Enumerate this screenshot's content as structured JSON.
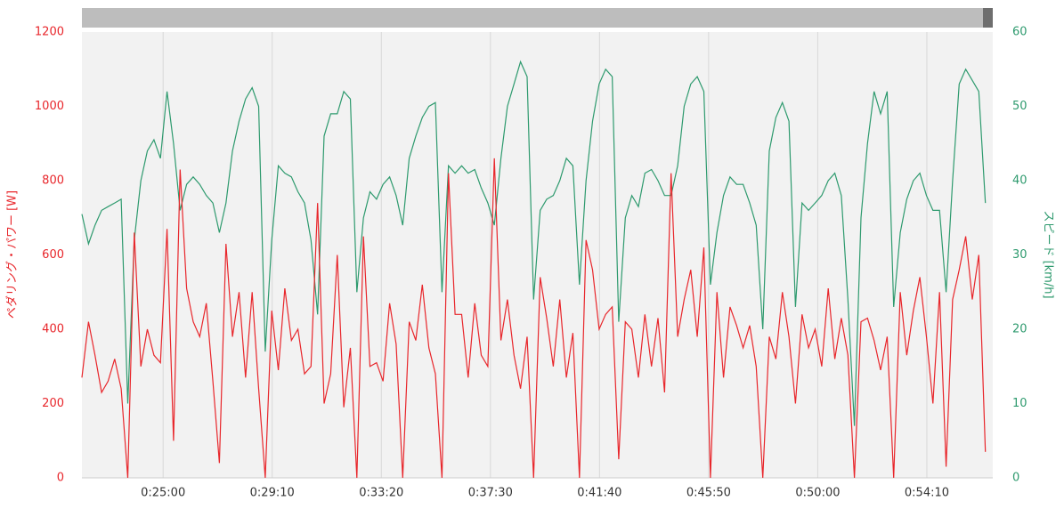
{
  "chart_data": {
    "type": "line",
    "y_label": "ペダリング・パワー [W]",
    "y2_label": "スピード [km/h]",
    "x": [
      1314,
      1329,
      1344,
      1359,
      1374,
      1389,
      1404,
      1419,
      1434,
      1449,
      1464,
      1479,
      1494,
      1509,
      1524,
      1539,
      1554,
      1569,
      1584,
      1599,
      1614,
      1629,
      1644,
      1659,
      1674,
      1689,
      1704,
      1719,
      1734,
      1749,
      1764,
      1779,
      1794,
      1809,
      1824,
      1839,
      1854,
      1869,
      1884,
      1899,
      1914,
      1929,
      1944,
      1959,
      1974,
      1989,
      2004,
      2019,
      2034,
      2049,
      2064,
      2079,
      2094,
      2109,
      2124,
      2139,
      2154,
      2169,
      2184,
      2199,
      2214,
      2229,
      2244,
      2259,
      2274,
      2289,
      2304,
      2319,
      2334,
      2349,
      2364,
      2379,
      2394,
      2409,
      2424,
      2439,
      2454,
      2469,
      2484,
      2499,
      2514,
      2529,
      2544,
      2559,
      2574,
      2589,
      2604,
      2619,
      2634,
      2649,
      2664,
      2679,
      2694,
      2709,
      2724,
      2739,
      2754,
      2769,
      2784,
      2799,
      2814,
      2829,
      2844,
      2859,
      2874,
      2889,
      2904,
      2919,
      2934,
      2949,
      2964,
      2979,
      2994,
      3009,
      3024,
      3039,
      3054,
      3069,
      3084,
      3099,
      3114,
      3129,
      3144,
      3159,
      3174,
      3189,
      3204,
      3219,
      3234,
      3249,
      3264,
      3279,
      3294,
      3309,
      3324,
      3339,
      3354,
      3369,
      3384
    ],
    "series": [
      {
        "color": "#e8262b",
        "axis": "y",
        "values": [
          270,
          420,
          330,
          230,
          260,
          320,
          240,
          0,
          660,
          300,
          400,
          330,
          310,
          670,
          100,
          830,
          510,
          420,
          380,
          470,
          260,
          40,
          630,
          380,
          500,
          270,
          500,
          240,
          0,
          450,
          290,
          510,
          370,
          400,
          280,
          300,
          740,
          200,
          280,
          600,
          190,
          350,
          0,
          650,
          300,
          310,
          260,
          470,
          360,
          0,
          420,
          370,
          520,
          350,
          280,
          0,
          820,
          440,
          440,
          270,
          470,
          330,
          300,
          860,
          370,
          480,
          330,
          240,
          380,
          0,
          540,
          430,
          300,
          480,
          270,
          390,
          0,
          640,
          560,
          400,
          440,
          460,
          50,
          420,
          400,
          270,
          440,
          300,
          430,
          230,
          820,
          380,
          480,
          560,
          380,
          620,
          0,
          500,
          270,
          460,
          410,
          350,
          410,
          300,
          0,
          380,
          320,
          500,
          380,
          200,
          440,
          350,
          400,
          300,
          510,
          320,
          430,
          330,
          0,
          420,
          430,
          370,
          290,
          380,
          0,
          500,
          330,
          450,
          540,
          380,
          200,
          500,
          30,
          480,
          560,
          650,
          480,
          600,
          70
        ]
      },
      {
        "color": "#2e9a6e",
        "axis": "y2",
        "values": [
          35.5,
          31.5,
          34,
          36,
          36.5,
          37,
          37.5,
          10,
          32,
          40,
          44,
          45.5,
          43,
          52,
          45,
          36,
          39.5,
          40.5,
          39.5,
          38,
          37,
          33,
          37,
          44,
          48,
          51,
          52.5,
          50,
          17,
          32,
          42,
          41,
          40.5,
          38.5,
          37,
          32,
          22,
          46,
          49,
          49,
          52,
          51,
          25,
          35,
          38.5,
          37.5,
          39.5,
          40.5,
          38,
          34,
          43,
          46,
          48.5,
          50,
          50.5,
          25,
          42,
          41,
          42,
          41,
          41.5,
          39,
          37,
          34,
          43,
          50,
          53,
          56,
          54,
          24,
          36,
          37.5,
          38,
          40,
          43,
          42,
          26,
          40,
          48,
          53,
          55,
          54,
          21,
          35,
          38,
          36.5,
          41,
          41.5,
          40,
          38,
          38,
          42,
          50,
          53,
          54,
          52,
          26,
          33,
          38,
          40.5,
          39.5,
          39.5,
          37,
          34,
          20,
          44,
          48.5,
          50.5,
          48,
          23,
          37,
          36,
          37,
          38,
          40,
          41,
          38,
          24,
          7,
          35,
          45,
          52,
          49,
          52,
          23,
          33,
          37.5,
          40,
          41,
          38,
          36,
          36,
          25,
          40,
          53,
          55,
          53.5,
          52,
          37
        ]
      }
    ],
    "xlim": [
      1314,
      3401
    ],
    "xticks": [
      {
        "value": 1500,
        "label": "0:25:00"
      },
      {
        "value": 1750,
        "label": "0:29:10"
      },
      {
        "value": 2000,
        "label": "0:33:20"
      },
      {
        "value": 2250,
        "label": "0:37:30"
      },
      {
        "value": 2500,
        "label": "0:41:40"
      },
      {
        "value": 2750,
        "label": "0:45:50"
      },
      {
        "value": 3000,
        "label": "0:50:00"
      },
      {
        "value": 3250,
        "label": "0:54:10"
      }
    ],
    "ylim": [
      0,
      1200
    ],
    "yticks": [
      0,
      200,
      400,
      600,
      800,
      1000,
      1200
    ],
    "y2lim": [
      0,
      60
    ],
    "y2ticks": [
      0,
      10,
      20,
      30,
      40,
      50,
      60
    ],
    "grid": "x"
  }
}
